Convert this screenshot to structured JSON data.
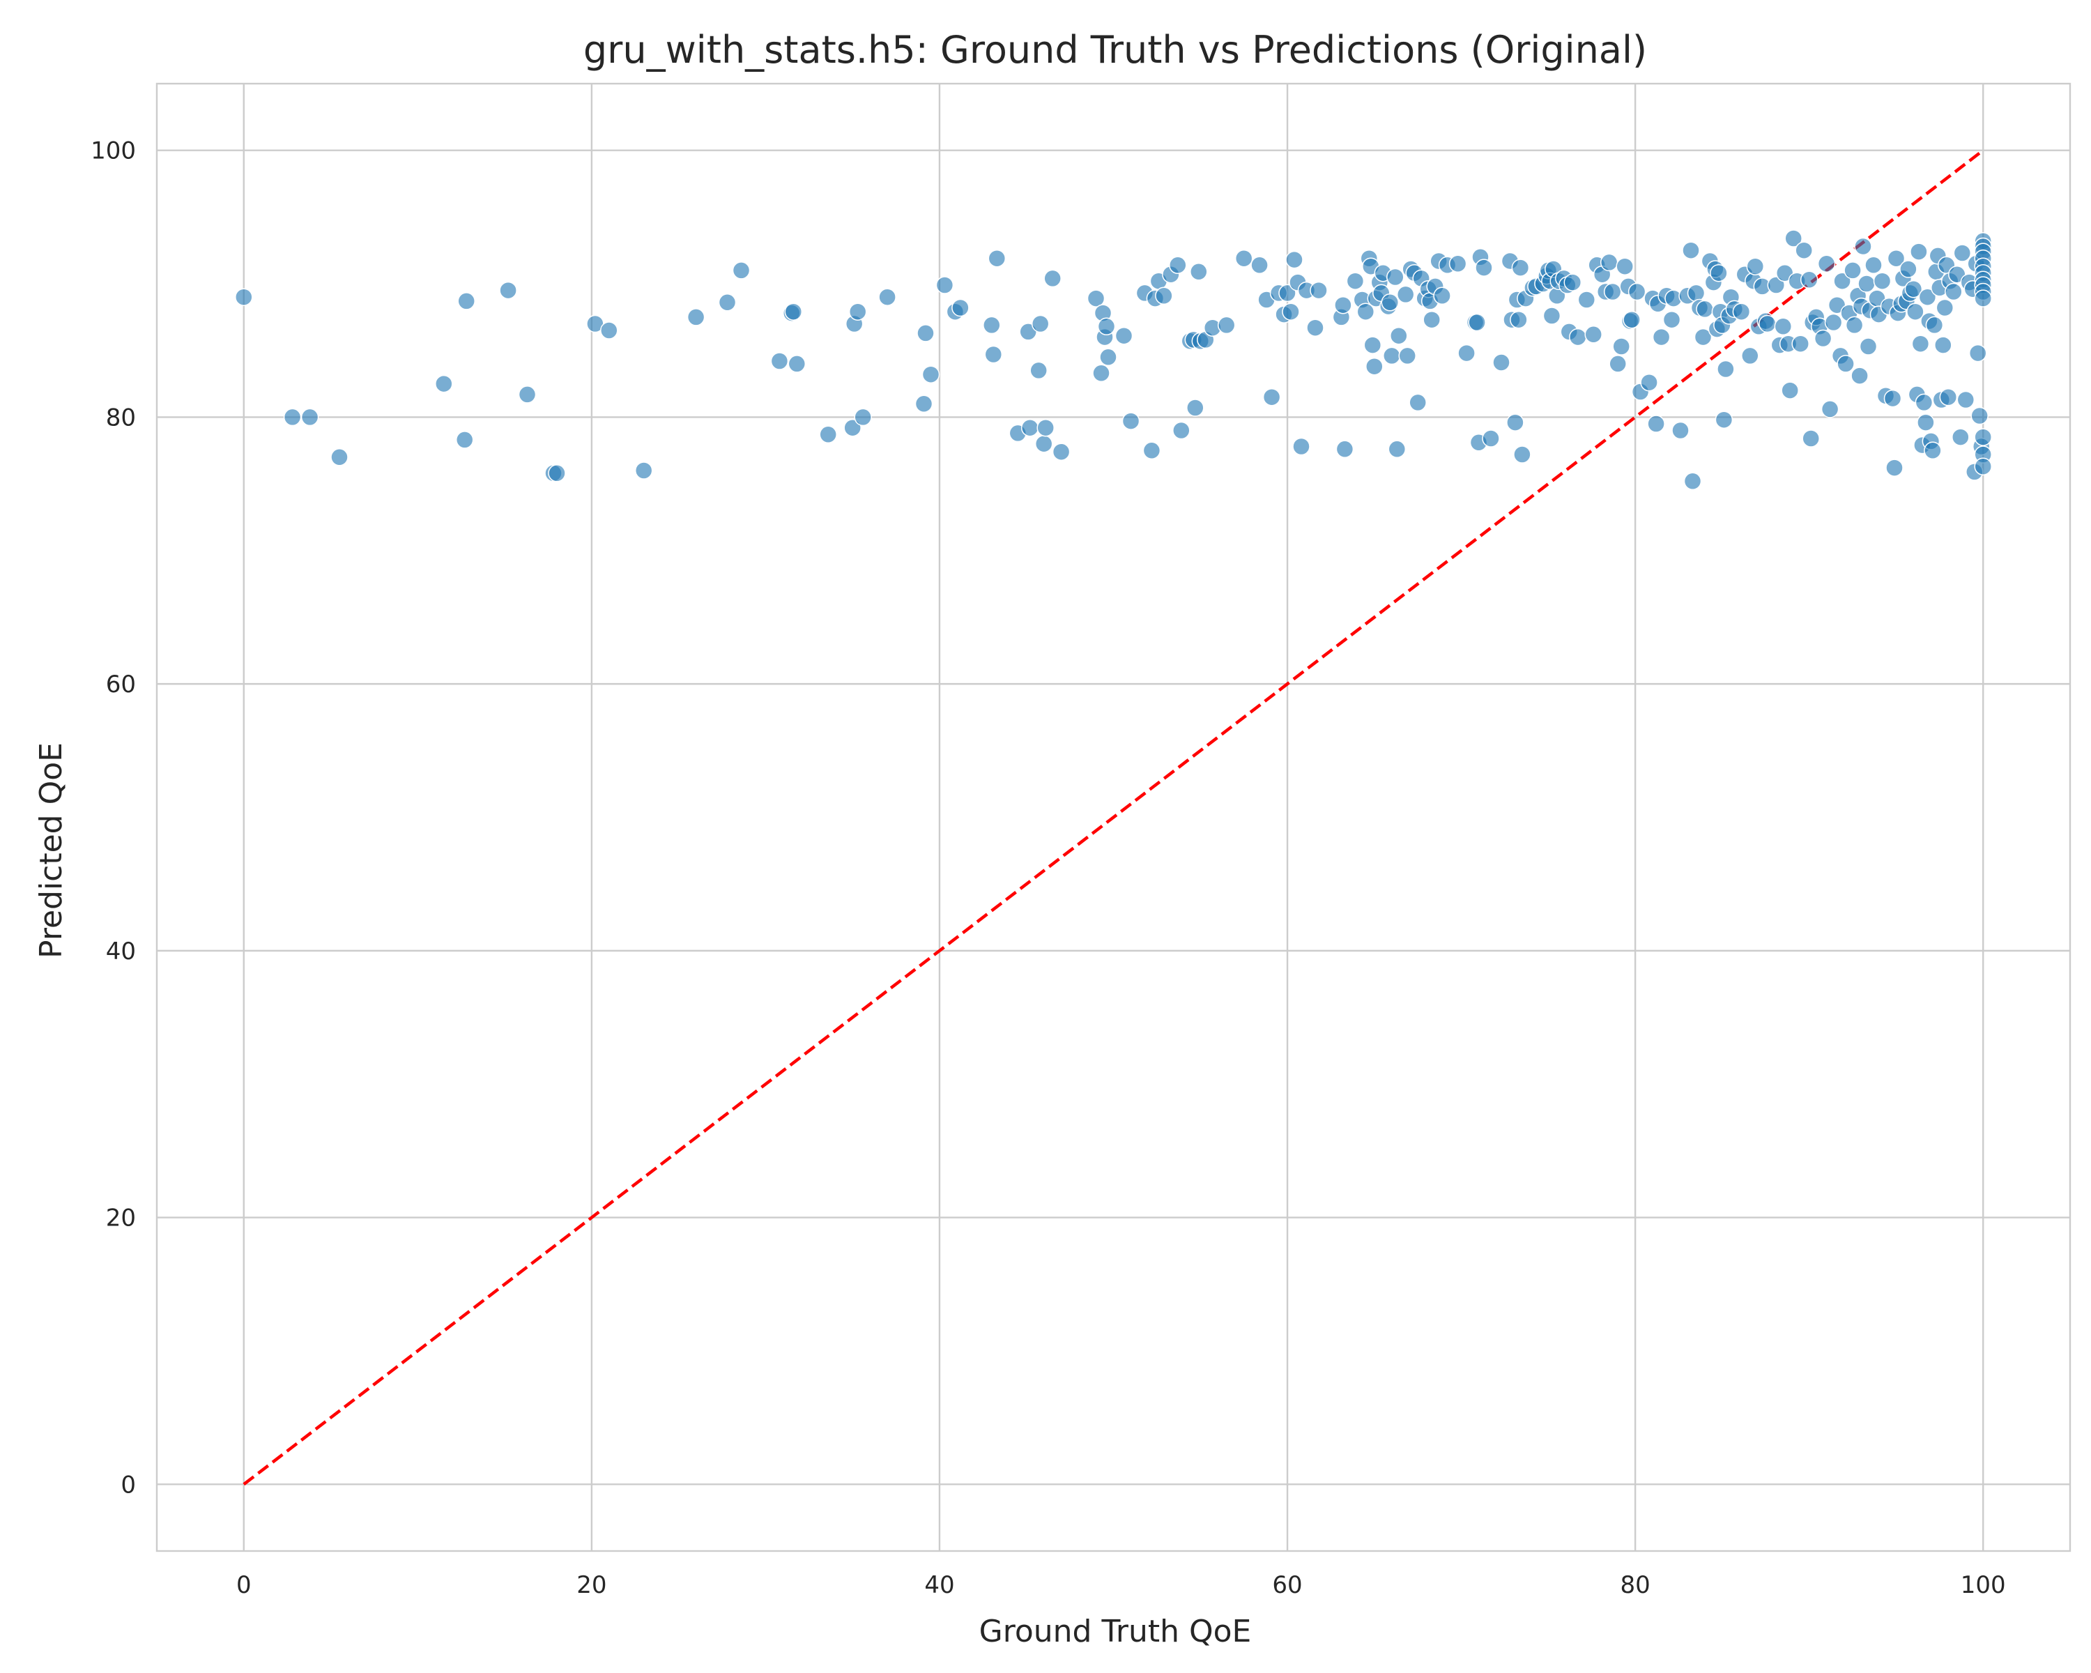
{
  "chart_data": {
    "type": "scatter",
    "title": "gru_with_stats.h5: Ground Truth vs Predictions (Original)",
    "xlabel": "Ground Truth QoE",
    "ylabel": "Predicted QoE",
    "xlim": [
      -5,
      105
    ],
    "ylim": [
      -5,
      105
    ],
    "xticks": [
      0,
      20,
      40,
      60,
      80,
      100
    ],
    "yticks": [
      0,
      20,
      40,
      60,
      80,
      100
    ],
    "grid": true,
    "colors": {
      "points": "#1f77b4",
      "reference_line": "#ff0000",
      "grid": "#cccccc"
    },
    "reference_line": {
      "style": "dashed",
      "x": [
        0,
        100
      ],
      "y": [
        0,
        100
      ]
    },
    "points": [
      [
        0,
        89
      ],
      [
        2.8,
        80
      ],
      [
        3.8,
        80
      ],
      [
        5.5,
        77
      ],
      [
        11.5,
        82.5
      ],
      [
        12.7,
        78.3
      ],
      [
        12.8,
        88.7
      ],
      [
        15.2,
        89.5
      ],
      [
        16.3,
        81.7
      ],
      [
        17.8,
        75.8
      ],
      [
        18,
        75.8
      ],
      [
        20.2,
        87
      ],
      [
        21,
        86.5
      ],
      [
        23,
        76
      ],
      [
        26,
        87.5
      ],
      [
        27.8,
        88.6
      ],
      [
        28.6,
        91
      ],
      [
        30.8,
        84.2
      ],
      [
        31.5,
        87.8
      ],
      [
        31.6,
        87.9
      ],
      [
        31.8,
        84
      ],
      [
        33.6,
        78.7
      ],
      [
        35,
        79.2
      ],
      [
        35.1,
        87
      ],
      [
        35.3,
        87.9
      ],
      [
        35.6,
        80
      ],
      [
        37,
        89
      ],
      [
        39.1,
        81
      ],
      [
        39.2,
        86.3
      ],
      [
        39.5,
        83.2
      ],
      [
        40.3,
        89.9
      ],
      [
        40.9,
        87.9
      ],
      [
        41.2,
        88.2
      ],
      [
        43,
        86.9
      ],
      [
        43.1,
        84.7
      ],
      [
        43.3,
        91.9
      ],
      [
        44.5,
        78.8
      ],
      [
        45.1,
        86.4
      ],
      [
        45.2,
        79.2
      ],
      [
        45.7,
        83.5
      ],
      [
        45.8,
        87
      ],
      [
        46,
        78
      ],
      [
        46.1,
        79.2
      ],
      [
        46.5,
        90.4
      ],
      [
        47,
        77.4
      ],
      [
        49,
        88.9
      ],
      [
        49.3,
        83.3
      ],
      [
        49.4,
        87.8
      ],
      [
        49.5,
        86
      ],
      [
        49.6,
        86.8
      ],
      [
        49.7,
        84.5
      ],
      [
        50.6,
        86.1
      ],
      [
        51,
        79.7
      ],
      [
        51.8,
        89.3
      ],
      [
        52.2,
        77.5
      ],
      [
        52.4,
        88.9
      ],
      [
        52.6,
        90.2
      ],
      [
        52.9,
        89.1
      ],
      [
        53.3,
        90.7
      ],
      [
        53.7,
        91.4
      ],
      [
        53.9,
        79
      ],
      [
        54.4,
        85.7
      ],
      [
        54.6,
        85.8
      ],
      [
        54.7,
        80.7
      ],
      [
        54.9,
        90.9
      ],
      [
        55,
        85.7
      ],
      [
        55.3,
        85.8
      ],
      [
        55.7,
        86.7
      ],
      [
        56.5,
        86.9
      ],
      [
        57.5,
        91.9
      ],
      [
        58.4,
        91.4
      ],
      [
        58.8,
        88.8
      ],
      [
        59.1,
        81.5
      ],
      [
        59.5,
        89.3
      ],
      [
        59.8,
        87.7
      ],
      [
        60,
        89.3
      ],
      [
        60.2,
        87.9
      ],
      [
        60.4,
        91.8
      ],
      [
        60.6,
        90.1
      ],
      [
        60.8,
        77.8
      ],
      [
        61.1,
        89.5
      ],
      [
        61.6,
        86.7
      ],
      [
        61.8,
        89.5
      ],
      [
        63.1,
        87.5
      ],
      [
        63.2,
        88.4
      ],
      [
        63.3,
        77.6
      ],
      [
        63.9,
        90.2
      ],
      [
        64.3,
        88.8
      ],
      [
        64.5,
        87.9
      ],
      [
        64.7,
        91.9
      ],
      [
        64.8,
        91.3
      ],
      [
        64.9,
        85.4
      ],
      [
        65,
        83.8
      ],
      [
        65.1,
        88.9
      ],
      [
        65.3,
        90.1
      ],
      [
        65.4,
        89.3
      ],
      [
        65.5,
        90.8
      ],
      [
        65.8,
        88.3
      ],
      [
        65.9,
        88.6
      ],
      [
        66,
        84.6
      ],
      [
        66.2,
        90.5
      ],
      [
        66.3,
        77.6
      ],
      [
        66.4,
        86.1
      ],
      [
        66.8,
        89.2
      ],
      [
        66.9,
        84.6
      ],
      [
        67.1,
        91.1
      ],
      [
        67.3,
        90.8
      ],
      [
        67.5,
        81.1
      ],
      [
        67.7,
        90.4
      ],
      [
        67.9,
        88.9
      ],
      [
        68.1,
        89.6
      ],
      [
        68.2,
        88.7
      ],
      [
        68.3,
        87.3
      ],
      [
        68.5,
        89.8
      ],
      [
        68.7,
        91.7
      ],
      [
        68.9,
        89.1
      ],
      [
        69.2,
        91.4
      ],
      [
        69.8,
        91.5
      ],
      [
        70.3,
        84.8
      ],
      [
        70.8,
        87.1
      ],
      [
        70.9,
        87.1
      ],
      [
        71,
        78.1
      ],
      [
        71.1,
        92
      ],
      [
        71.3,
        91.2
      ],
      [
        71.7,
        78.4
      ],
      [
        72.3,
        84.1
      ],
      [
        72.8,
        91.7
      ],
      [
        72.9,
        87.3
      ],
      [
        73.1,
        79.6
      ],
      [
        73.2,
        88.8
      ],
      [
        73.3,
        87.3
      ],
      [
        73.4,
        91.2
      ],
      [
        73.5,
        77.2
      ],
      [
        73.7,
        88.9
      ],
      [
        74.1,
        89.7
      ],
      [
        74.3,
        89.8
      ],
      [
        74.7,
        90
      ],
      [
        74.9,
        90.6
      ],
      [
        75,
        91
      ],
      [
        75.1,
        90.2
      ],
      [
        75.2,
        87.6
      ],
      [
        75.3,
        91.1
      ],
      [
        75.5,
        89.1
      ],
      [
        75.6,
        90.2
      ],
      [
        75.9,
        90.4
      ],
      [
        76.1,
        89.9
      ],
      [
        76.2,
        86.4
      ],
      [
        76.4,
        90.1
      ],
      [
        76.7,
        86
      ],
      [
        77.2,
        88.8
      ],
      [
        77.6,
        86.2
      ],
      [
        77.8,
        91.4
      ],
      [
        78.1,
        90.7
      ],
      [
        78.3,
        89.4
      ],
      [
        78.5,
        91.6
      ],
      [
        78.7,
        89.4
      ],
      [
        79,
        84
      ],
      [
        79.2,
        85.3
      ],
      [
        79.4,
        91.3
      ],
      [
        79.6,
        89.8
      ],
      [
        79.7,
        87.2
      ],
      [
        79.8,
        87.3
      ],
      [
        80.1,
        89.4
      ],
      [
        80.3,
        81.9
      ],
      [
        80.8,
        82.6
      ],
      [
        81,
        88.9
      ],
      [
        81.2,
        79.5
      ],
      [
        81.3,
        88.5
      ],
      [
        81.5,
        86
      ],
      [
        81.8,
        89.1
      ],
      [
        82.1,
        87.3
      ],
      [
        82.2,
        88.9
      ],
      [
        82.6,
        79
      ],
      [
        83,
        89.1
      ],
      [
        83.2,
        92.5
      ],
      [
        83.3,
        75.2
      ],
      [
        83.5,
        89.3
      ],
      [
        83.7,
        88.2
      ],
      [
        83.9,
        86
      ],
      [
        84,
        88.1
      ],
      [
        84.3,
        91.7
      ],
      [
        84.5,
        90.1
      ],
      [
        84.6,
        91.1
      ],
      [
        84.7,
        86.6
      ],
      [
        84.8,
        90.8
      ],
      [
        84.9,
        87.9
      ],
      [
        85,
        86.9
      ],
      [
        85.1,
        79.8
      ],
      [
        85.2,
        83.6
      ],
      [
        85.4,
        87.6
      ],
      [
        85.5,
        89
      ],
      [
        85.7,
        88.1
      ],
      [
        86.1,
        87.9
      ],
      [
        86.3,
        90.7
      ],
      [
        86.6,
        84.6
      ],
      [
        86.8,
        90.2
      ],
      [
        86.9,
        91.3
      ],
      [
        87.1,
        86.8
      ],
      [
        87.3,
        89.8
      ],
      [
        87.5,
        87.2
      ],
      [
        87.6,
        87
      ],
      [
        88.1,
        89.9
      ],
      [
        88.3,
        85.4
      ],
      [
        88.5,
        86.8
      ],
      [
        88.6,
        90.8
      ],
      [
        88.8,
        85.5
      ],
      [
        88.9,
        82
      ],
      [
        89.1,
        93.4
      ],
      [
        89.3,
        90.2
      ],
      [
        89.5,
        85.5
      ],
      [
        89.7,
        92.5
      ],
      [
        90,
        90.3
      ],
      [
        90.1,
        78.4
      ],
      [
        90.2,
        87.1
      ],
      [
        90.4,
        87.5
      ],
      [
        90.6,
        86.8
      ],
      [
        90.8,
        85.9
      ],
      [
        91,
        91.5
      ],
      [
        91.2,
        80.6
      ],
      [
        91.4,
        87.1
      ],
      [
        91.6,
        88.4
      ],
      [
        91.8,
        84.6
      ],
      [
        91.9,
        90.2
      ],
      [
        92.1,
        84
      ],
      [
        92.3,
        87.8
      ],
      [
        92.5,
        91
      ],
      [
        92.6,
        86.9
      ],
      [
        92.8,
        89.1
      ],
      [
        92.9,
        83.1
      ],
      [
        93,
        88.3
      ],
      [
        93.1,
        92.8
      ],
      [
        93.3,
        90
      ],
      [
        93.4,
        85.3
      ],
      [
        93.5,
        88
      ],
      [
        93.7,
        91.4
      ],
      [
        93.9,
        88.9
      ],
      [
        94,
        87.7
      ],
      [
        94.2,
        90.2
      ],
      [
        94.4,
        81.6
      ],
      [
        94.6,
        88.3
      ],
      [
        94.8,
        81.4
      ],
      [
        94.9,
        76.2
      ],
      [
        95,
        91.9
      ],
      [
        95.1,
        87.8
      ],
      [
        95.3,
        88.5
      ],
      [
        95.4,
        90.4
      ],
      [
        95.6,
        88.7
      ],
      [
        95.7,
        91.1
      ],
      [
        95.8,
        89.3
      ],
      [
        96,
        89.6
      ],
      [
        96.1,
        87.9
      ],
      [
        96.2,
        81.7
      ],
      [
        96.3,
        92.4
      ],
      [
        96.4,
        85.5
      ],
      [
        96.5,
        77.9
      ],
      [
        96.6,
        81.1
      ],
      [
        96.7,
        79.6
      ],
      [
        96.8,
        89
      ],
      [
        96.9,
        87.2
      ],
      [
        97,
        78.2
      ],
      [
        97.1,
        77.5
      ],
      [
        97.2,
        86.9
      ],
      [
        97.3,
        90.9
      ],
      [
        97.4,
        92.1
      ],
      [
        97.5,
        89.7
      ],
      [
        97.6,
        81.3
      ],
      [
        97.7,
        85.4
      ],
      [
        97.8,
        88.2
      ],
      [
        97.9,
        91.4
      ],
      [
        98,
        81.5
      ],
      [
        98.1,
        90.2
      ],
      [
        98.3,
        89.4
      ],
      [
        98.5,
        90.7
      ],
      [
        98.7,
        78.5
      ],
      [
        98.8,
        92.3
      ],
      [
        99,
        81.3
      ],
      [
        99.2,
        90.1
      ],
      [
        99.4,
        89.6
      ],
      [
        99.5,
        75.9
      ],
      [
        99.6,
        91.5
      ],
      [
        99.7,
        84.8
      ],
      [
        99.8,
        80.1
      ],
      [
        99.9,
        77.8
      ],
      [
        100,
        93.2
      ],
      [
        100,
        92.8
      ],
      [
        100,
        92.4
      ],
      [
        100,
        91.9
      ],
      [
        100,
        91.3
      ],
      [
        100,
        90.8
      ],
      [
        100,
        90.3
      ],
      [
        100,
        89.9
      ],
      [
        100,
        89.4
      ],
      [
        100,
        88.9
      ],
      [
        100,
        78.5
      ],
      [
        100,
        77.2
      ],
      [
        100,
        76.3
      ]
    ]
  }
}
